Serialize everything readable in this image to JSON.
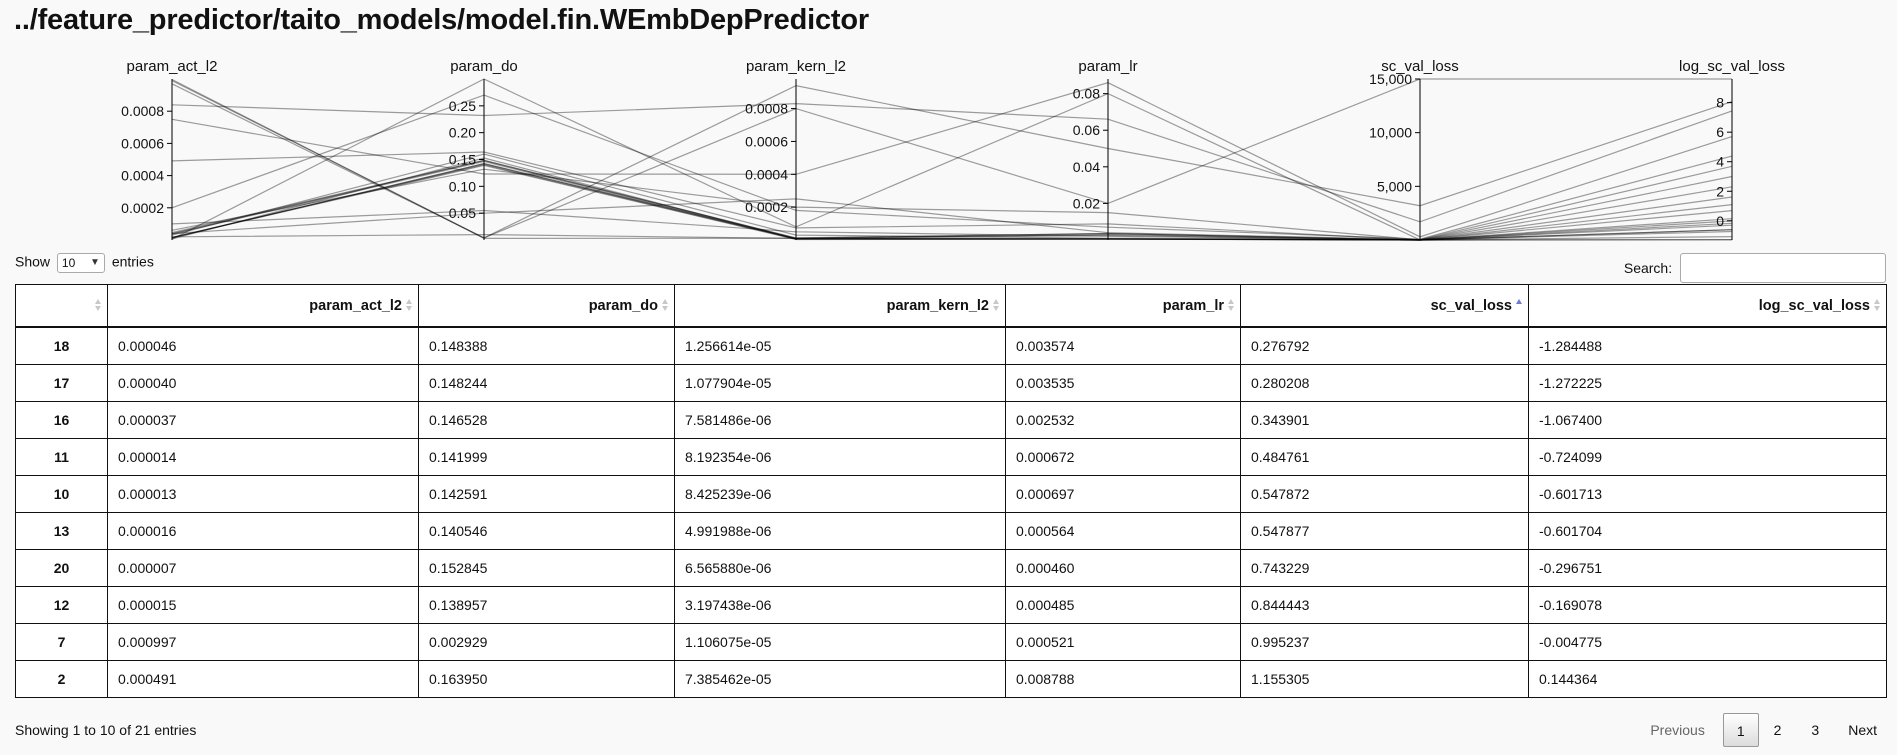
{
  "page": {
    "title": "../feature_predictor/taito_models/model.fin.WEmbDepPredictor"
  },
  "colors": {
    "sort_active": "#6b7bd6",
    "sort_inactive": "#c8c8c8",
    "line": "#000000",
    "border": "#111111"
  },
  "icons": {
    "sort": "sort-arrows-icon",
    "sort_active": "sort-ascending-icon",
    "dropdown": "chevron-down-icon"
  },
  "chart_data": {
    "type": "parallel-coordinates",
    "axes": [
      {
        "name": "param_act_l2",
        "domain": [
          0,
          0.001
        ],
        "ticks": [
          0.0002,
          0.0004,
          0.0006,
          0.0008
        ],
        "tick_labels": [
          "0.0002",
          "0.0004",
          "0.0006",
          "0.0008"
        ]
      },
      {
        "name": "param_do",
        "domain": [
          0,
          0.3
        ],
        "ticks": [
          0.05,
          0.1,
          0.15,
          0.2,
          0.25
        ],
        "tick_labels": [
          "0.05",
          "0.10",
          "0.15",
          "0.20",
          "0.25"
        ]
      },
      {
        "name": "param_kern_l2",
        "domain": [
          0,
          0.00098
        ],
        "ticks": [
          0.0002,
          0.0004,
          0.0006,
          0.0008
        ],
        "tick_labels": [
          "0.0002",
          "0.0004",
          "0.0006",
          "0.0008"
        ]
      },
      {
        "name": "param_lr",
        "domain": [
          0,
          0.088
        ],
        "ticks": [
          0.02,
          0.04,
          0.06,
          0.08
        ],
        "tick_labels": [
          "0.02",
          "0.04",
          "0.06",
          "0.08"
        ]
      },
      {
        "name": "sc_val_loss",
        "domain": [
          0,
          15000
        ],
        "ticks": [
          5000,
          10000,
          15000
        ],
        "tick_labels": [
          "5,000",
          "10,000",
          "15,000"
        ]
      },
      {
        "name": "log_sc_val_loss",
        "domain": [
          -1.3,
          9.6
        ],
        "ticks": [
          0,
          2,
          4,
          6,
          8
        ],
        "tick_labels": [
          "0",
          "2",
          "4",
          "6",
          "8"
        ]
      }
    ],
    "lines": [
      [
        4.6e-05,
        0.148388,
        1.26e-05,
        0.003574,
        0.276792,
        -1.284488
      ],
      [
        4e-05,
        0.148244,
        1.08e-05,
        0.003535,
        0.280208,
        -1.272225
      ],
      [
        3.7e-05,
        0.146528,
        7.6e-06,
        0.002532,
        0.343901,
        -1.0674
      ],
      [
        1.4e-05,
        0.141999,
        8.2e-06,
        0.000672,
        0.484761,
        -0.724099
      ],
      [
        1.3e-05,
        0.142591,
        8.4e-06,
        0.000697,
        0.547872,
        -0.601713
      ],
      [
        1.6e-05,
        0.140546,
        5e-06,
        0.000564,
        0.547877,
        -0.601704
      ],
      [
        7e-06,
        0.152845,
        6.6e-06,
        0.00046,
        0.743229,
        -0.296751
      ],
      [
        1.5e-05,
        0.138957,
        3.2e-06,
        0.000485,
        0.844443,
        -0.169078
      ],
      [
        0.000997,
        0.002929,
        1.11e-05,
        0.000521,
        0.995237,
        -0.004775
      ],
      [
        0.000491,
        0.16395,
        7.39e-05,
        0.008788,
        1.155305,
        0.144364
      ],
      [
        0.00099,
        0.004,
        0.00094,
        0.05,
        3200,
        8.07
      ],
      [
        0.00084,
        0.232,
        0.00083,
        0.066,
        1700,
        7.44
      ],
      [
        0.00075,
        0.123,
        0.0004,
        0.086,
        300,
        5.7
      ],
      [
        0.00097,
        0.004,
        0.0008,
        0.02,
        15000,
        9.61
      ],
      [
        0.0002,
        0.27,
        0.00018,
        0.007,
        80,
        4.38
      ],
      [
        4e-05,
        0.05,
        0.00025,
        0.004,
        40,
        3.69
      ],
      [
        5e-06,
        0.3,
        8e-05,
        0.08,
        10,
        2.3
      ],
      [
        6e-05,
        0.132,
        0.0002,
        0.015,
        20,
        3.0
      ],
      [
        0.0001,
        0.055,
        5e-05,
        0.002,
        5,
        1.61
      ],
      [
        3e-05,
        0.16,
        3e-05,
        0.001,
        3,
        1.1
      ],
      [
        2e-05,
        0.01,
        1e-05,
        0.003,
        2,
        0.69
      ]
    ]
  },
  "table": {
    "length": {
      "label_before": "Show",
      "value": "10",
      "label_after": "entries"
    },
    "search": {
      "label": "Search:",
      "value": ""
    },
    "columns": [
      "",
      "param_act_l2",
      "param_do",
      "param_kern_l2",
      "param_lr",
      "sc_val_loss",
      "log_sc_val_loss"
    ],
    "sorted_column": "sc_val_loss",
    "rows": [
      {
        "idx": "18",
        "cells": [
          "0.000046",
          "0.148388",
          "1.256614e-05",
          "0.003574",
          "0.276792",
          "-1.284488"
        ]
      },
      {
        "idx": "17",
        "cells": [
          "0.000040",
          "0.148244",
          "1.077904e-05",
          "0.003535",
          "0.280208",
          "-1.272225"
        ]
      },
      {
        "idx": "16",
        "cells": [
          "0.000037",
          "0.146528",
          "7.581486e-06",
          "0.002532",
          "0.343901",
          "-1.067400"
        ]
      },
      {
        "idx": "11",
        "cells": [
          "0.000014",
          "0.141999",
          "8.192354e-06",
          "0.000672",
          "0.484761",
          "-0.724099"
        ]
      },
      {
        "idx": "10",
        "cells": [
          "0.000013",
          "0.142591",
          "8.425239e-06",
          "0.000697",
          "0.547872",
          "-0.601713"
        ]
      },
      {
        "idx": "13",
        "cells": [
          "0.000016",
          "0.140546",
          "4.991988e-06",
          "0.000564",
          "0.547877",
          "-0.601704"
        ]
      },
      {
        "idx": "20",
        "cells": [
          "0.000007",
          "0.152845",
          "6.565880e-06",
          "0.000460",
          "0.743229",
          "-0.296751"
        ]
      },
      {
        "idx": "12",
        "cells": [
          "0.000015",
          "0.138957",
          "3.197438e-06",
          "0.000485",
          "0.844443",
          "-0.169078"
        ]
      },
      {
        "idx": "7",
        "cells": [
          "0.000997",
          "0.002929",
          "1.106075e-05",
          "0.000521",
          "0.995237",
          "-0.004775"
        ]
      },
      {
        "idx": "2",
        "cells": [
          "0.000491",
          "0.163950",
          "7.385462e-05",
          "0.008788",
          "1.155305",
          "0.144364"
        ]
      }
    ],
    "info": "Showing 1 to 10 of 21 entries",
    "pagination": {
      "previous": "Previous",
      "pages": [
        "1",
        "2",
        "3"
      ],
      "current": "1",
      "next": "Next"
    }
  }
}
